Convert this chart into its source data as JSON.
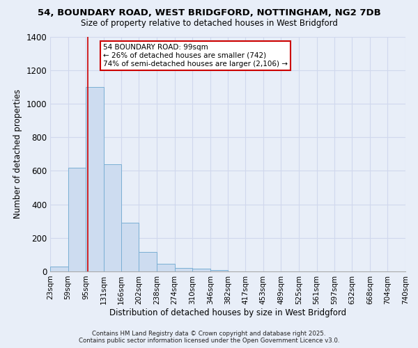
{
  "title_line1": "54, BOUNDARY ROAD, WEST BRIDGFORD, NOTTINGHAM, NG2 7DB",
  "title_line2": "Size of property relative to detached houses in West Bridgford",
  "xlabel": "Distribution of detached houses by size in West Bridgford",
  "ylabel": "Number of detached properties",
  "bin_edges": [
    23,
    59,
    95,
    131,
    166,
    202,
    238,
    274,
    310,
    346,
    382,
    417,
    453,
    489,
    525,
    561,
    597,
    632,
    668,
    704,
    740
  ],
  "bar_heights": [
    30,
    620,
    1100,
    640,
    290,
    115,
    45,
    20,
    18,
    10,
    0,
    0,
    0,
    0,
    0,
    0,
    0,
    0,
    0,
    0
  ],
  "bar_facecolor": "#cddcf0",
  "bar_edgecolor": "#7aafd4",
  "grid_color": "#d0d8ed",
  "background_color": "#e8eef8",
  "property_size": 99,
  "vline_color": "#cc0000",
  "annotation_text": "54 BOUNDARY ROAD: 99sqm\n← 26% of detached houses are smaller (742)\n74% of semi-detached houses are larger (2,106) →",
  "annotation_boxcolor": "white",
  "annotation_edgecolor": "#cc0000",
  "ylim": [
    0,
    1400
  ],
  "tick_label_fontsize": 7.5,
  "footer_line1": "Contains HM Land Registry data © Crown copyright and database right 2025.",
  "footer_line2": "Contains public sector information licensed under the Open Government Licence v3.0."
}
